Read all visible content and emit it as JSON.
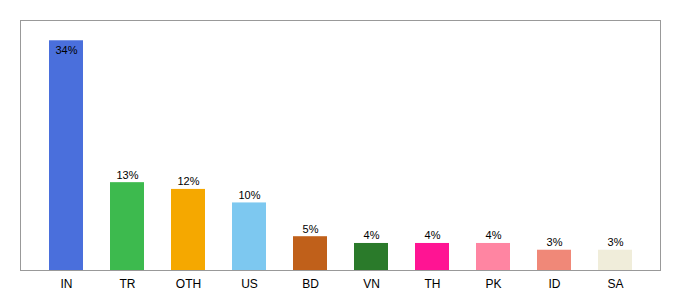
{
  "chart_data": {
    "type": "bar",
    "categories": [
      "IN",
      "TR",
      "OTH",
      "US",
      "BD",
      "VN",
      "TH",
      "PK",
      "ID",
      "SA"
    ],
    "values": [
      34,
      13,
      12,
      10,
      5,
      4,
      4,
      4,
      3,
      3
    ],
    "value_labels": [
      "34%",
      "13%",
      "12%",
      "10%",
      "5%",
      "4%",
      "4%",
      "4%",
      "3%",
      "3%"
    ],
    "colors": [
      "#4a6fdc",
      "#3dba4e",
      "#f5a800",
      "#7dc8f0",
      "#c0601a",
      "#2a7a2a",
      "#ff1493",
      "#ff85a2",
      "#f08878",
      "#f0edda"
    ],
    "ylim": [
      0,
      37
    ],
    "grid": false,
    "data_labels": true,
    "tick_labels": "x"
  }
}
